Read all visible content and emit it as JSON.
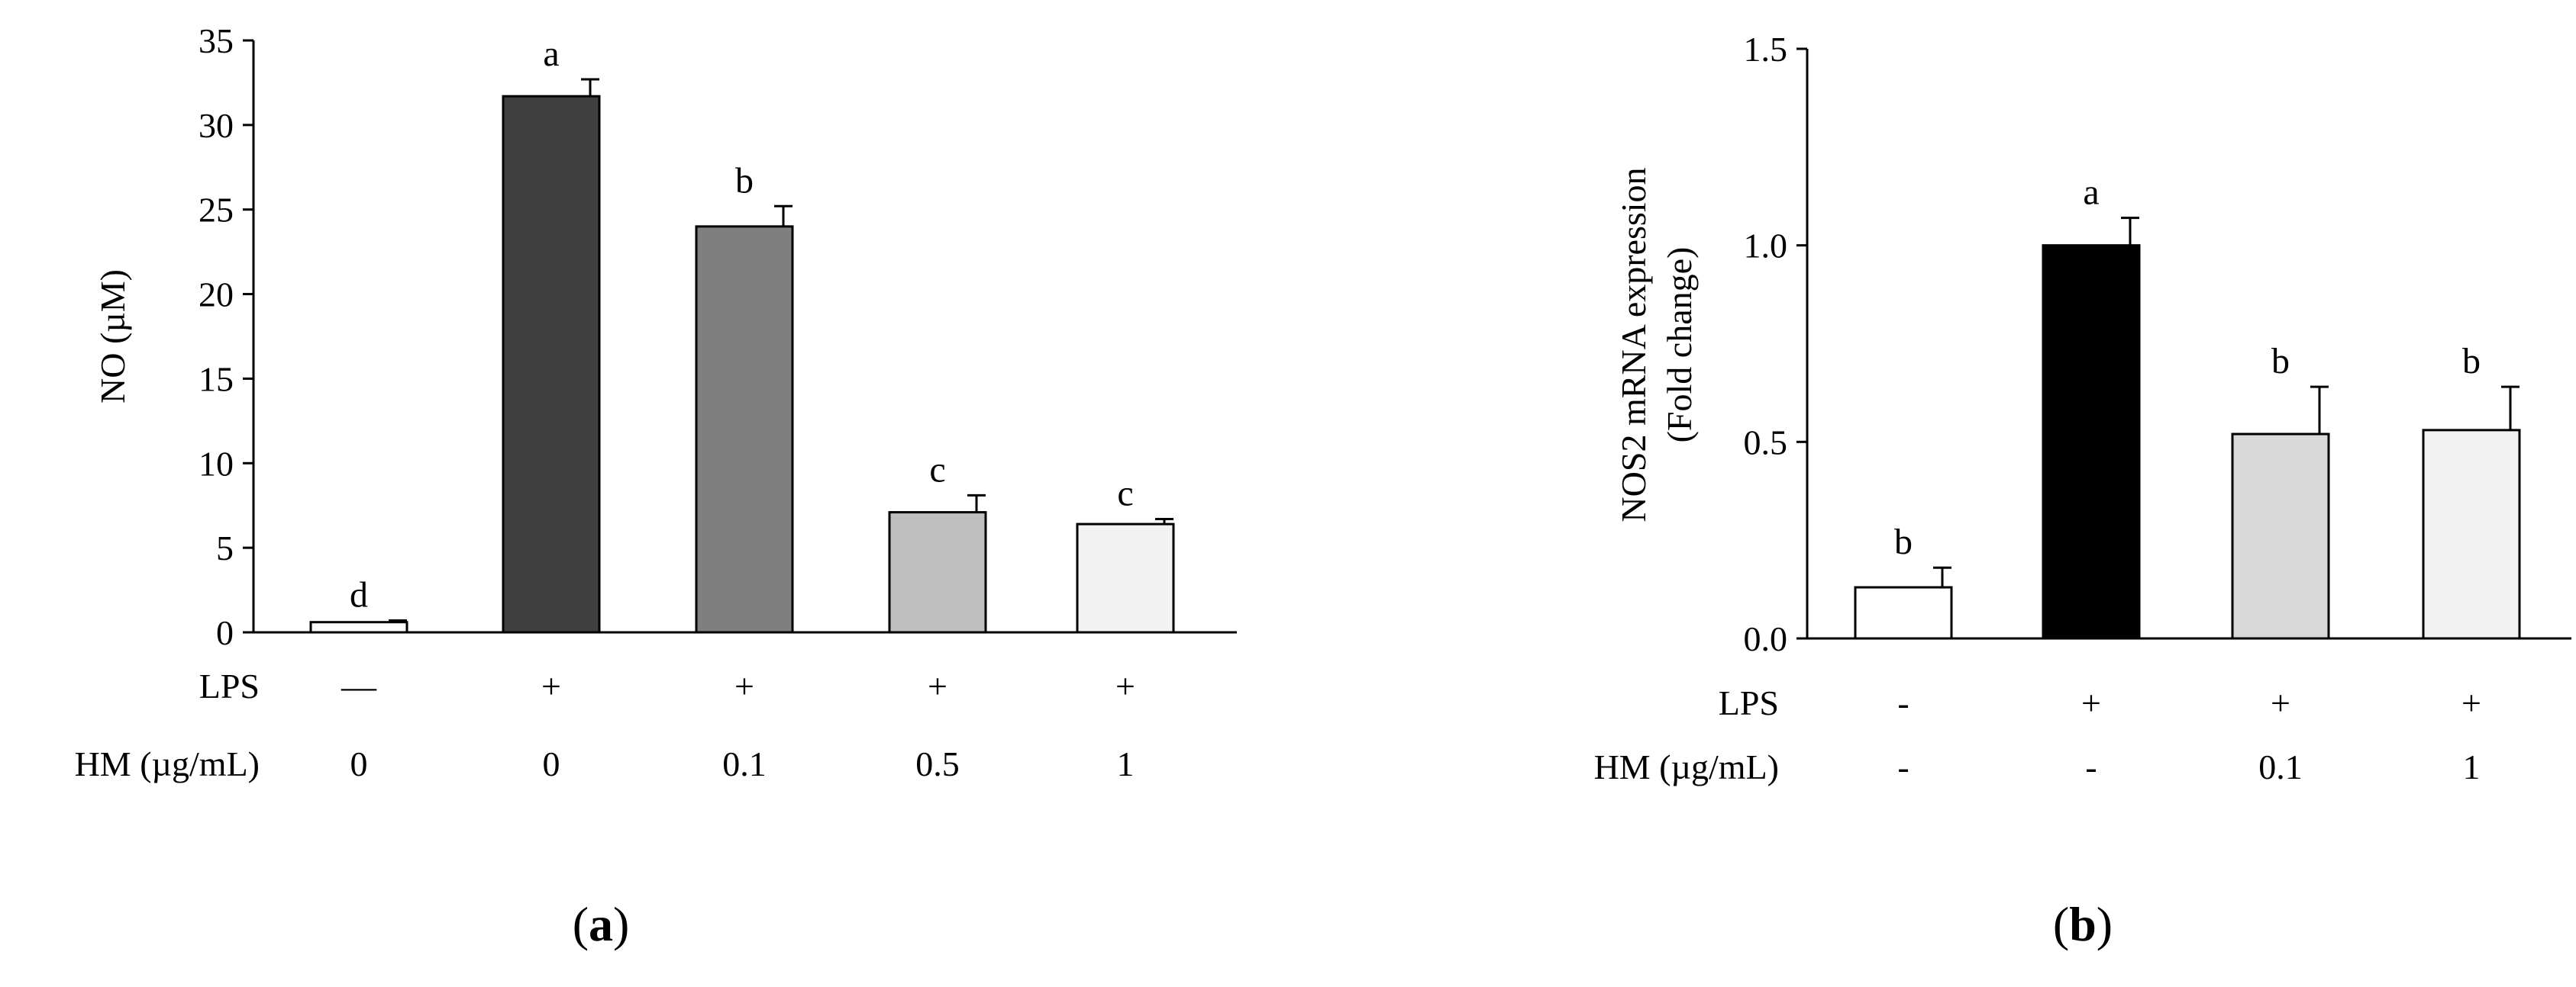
{
  "chart_data": [
    {
      "type": "bar",
      "panel_label": "(a)",
      "ylabel": "NO (µM)",
      "ylim": [
        0,
        35
      ],
      "yticks": [
        "0",
        "5",
        "10",
        "15",
        "20",
        "25",
        "30",
        "35"
      ],
      "row_labels": {
        "lps": "LPS",
        "hm": "HM (µg/mL)"
      },
      "lps": [
        "—",
        "+",
        "+",
        "+",
        "+"
      ],
      "hm": [
        "0",
        "0",
        "0.1",
        "0.5",
        "1"
      ],
      "values": [
        0.6,
        31.7,
        24.0,
        7.1,
        6.4
      ],
      "errors": [
        0.1,
        1.0,
        1.2,
        1.0,
        0.3
      ],
      "letters": [
        "d",
        "a",
        "b",
        "c",
        "c"
      ],
      "colors": [
        "#ffffff",
        "#404040",
        "#7f7f7f",
        "#bfbfbf",
        "#f2f2f2"
      ]
    },
    {
      "type": "bar",
      "panel_label": "(b)",
      "ylabel": [
        "NOS2 mRNA expression",
        "(Fold change)"
      ],
      "ylim": [
        0,
        1.5
      ],
      "yticks": [
        "0.0",
        "0.5",
        "1.0",
        "1.5"
      ],
      "row_labels": {
        "lps": "LPS",
        "hm": "HM (µg/mL)"
      },
      "lps": [
        "-",
        "+",
        "+",
        "+"
      ],
      "hm": [
        "-",
        "-",
        "0.1",
        "1"
      ],
      "values": [
        0.13,
        1.0,
        0.52,
        0.53
      ],
      "errors": [
        0.05,
        0.07,
        0.12,
        0.11
      ],
      "letters": [
        "b",
        "a",
        "b",
        "b"
      ],
      "colors": [
        "#ffffff",
        "#000000",
        "#d9d9d9",
        "#f2f2f2"
      ]
    }
  ]
}
